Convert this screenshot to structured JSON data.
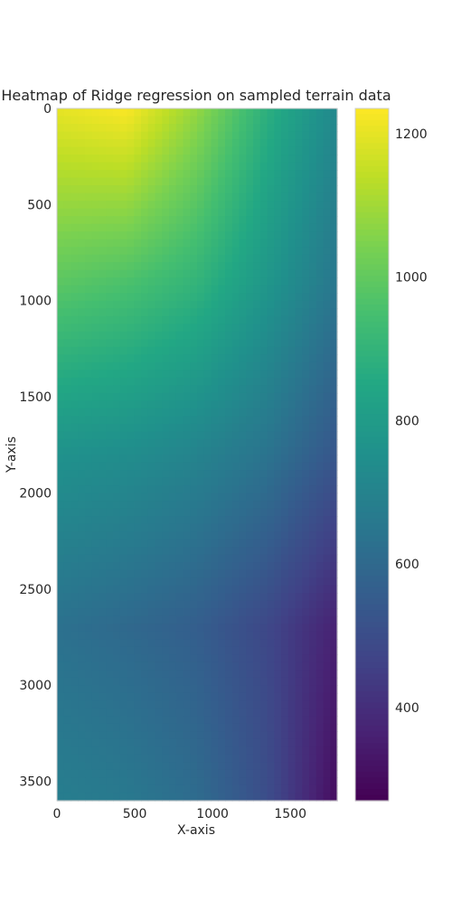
{
  "chart_data": {
    "type": "heatmap",
    "title": "Heatmap of Ridge regression on sampled terrain data",
    "xlabel": "X-axis",
    "ylabel": "Y-axis",
    "xlim": [
      0,
      1801
    ],
    "ylim": [
      3601,
      0
    ],
    "x_ticks": [
      0,
      500,
      1000,
      1500
    ],
    "y_ticks": [
      0,
      500,
      1000,
      1500,
      2000,
      2500,
      3000,
      3500
    ],
    "grid": false,
    "colormap": "viridis",
    "colorbar": {
      "range": [
        270,
        1235
      ],
      "ticks": [
        400,
        600,
        800,
        1000,
        1200
      ]
    },
    "surface": {
      "description_values": "estimated terrain height at grid points (x, y)",
      "x": [
        0,
        450,
        900,
        1350,
        1800
      ],
      "y": [
        0,
        900,
        1800,
        2700,
        3600
      ],
      "z": [
        [
          1200,
          1230,
          1080,
          880,
          720
        ],
        [
          990,
          960,
          900,
          780,
          650
        ],
        [
          760,
          740,
          700,
          640,
          530
        ],
        [
          630,
          600,
          560,
          480,
          360
        ],
        [
          680,
          660,
          610,
          500,
          300
        ]
      ]
    }
  }
}
